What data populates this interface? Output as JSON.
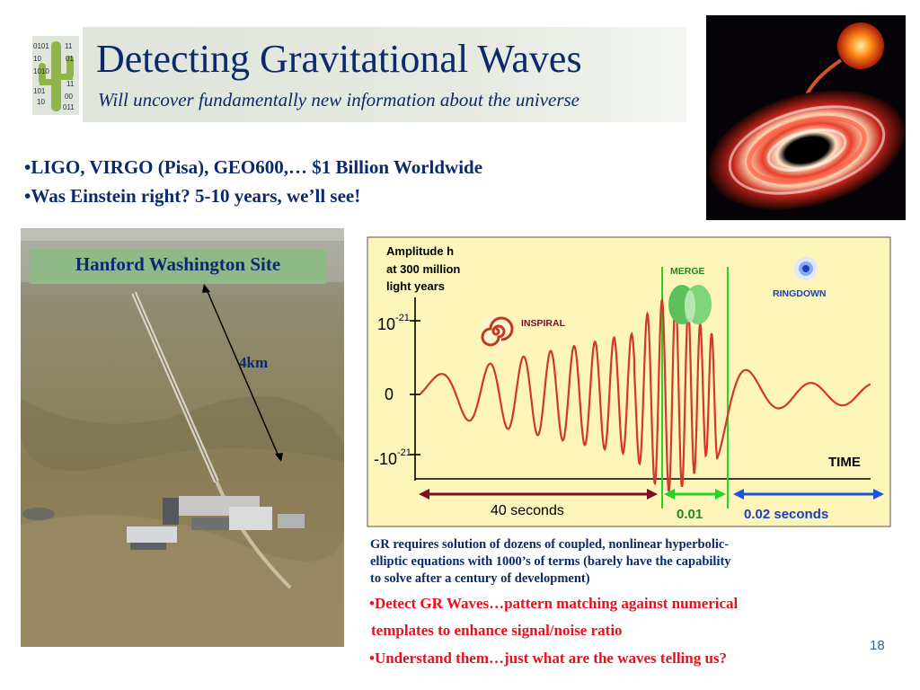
{
  "header": {
    "title": "Detecting Gravitational Waves",
    "subtitle": "Will uncover fundamentally new information about the universe",
    "logo_icon": "binary-cactus-logo",
    "logo_digits": [
      "0101",
      "11",
      "01",
      "10",
      "1010",
      "11",
      "101",
      "00",
      "10",
      "011"
    ]
  },
  "bullets": [
    "•LIGO, VIRGO (Pisa), GEO600,… $1 Billion Worldwide",
    "•Was Einstein right?  5-10 years, we’ll see!"
  ],
  "site_photo": {
    "label": "Hanford Washington Site",
    "distance_label": "4km"
  },
  "chart": {
    "y_title_lines": [
      "Amplitude h",
      "at 300 million",
      "light years"
    ],
    "y_tick_labels": [
      {
        "base": "10",
        "exp": "-21"
      },
      {
        "base": "0",
        "exp": ""
      },
      {
        "base": "-10",
        "exp": "-21"
      }
    ],
    "x_label": "TIME",
    "phase_labels": {
      "inspiral": "INSPIRAL",
      "merge": "MERGE",
      "ringdown": "RINGDOWN"
    },
    "duration_labels": {
      "inspiral": "40 seconds",
      "merge": "0.01",
      "ringdown": "0.02 seconds"
    },
    "colors": {
      "background": "#fdf5b9",
      "wave": "#d0382a",
      "merge_lines": "#2bd12b",
      "inspiral_arrow": "#7a1020",
      "ringdown_arrow": "#1a54d8",
      "axis": "#000000"
    }
  },
  "notes": {
    "gr_lines": [
      "GR requires solution of dozens of coupled, nonlinear hyperbolic-",
      "elliptic equations with 1000’s of terms (barely have the capability",
      "to solve after a century of development)"
    ],
    "red_bullets": [
      "•Detect GR Waves…pattern matching against numerical",
      "   templates to enhance signal/noise ratio",
      "•Understand them…just what are the waves telling us?"
    ]
  },
  "slide_number": "18"
}
